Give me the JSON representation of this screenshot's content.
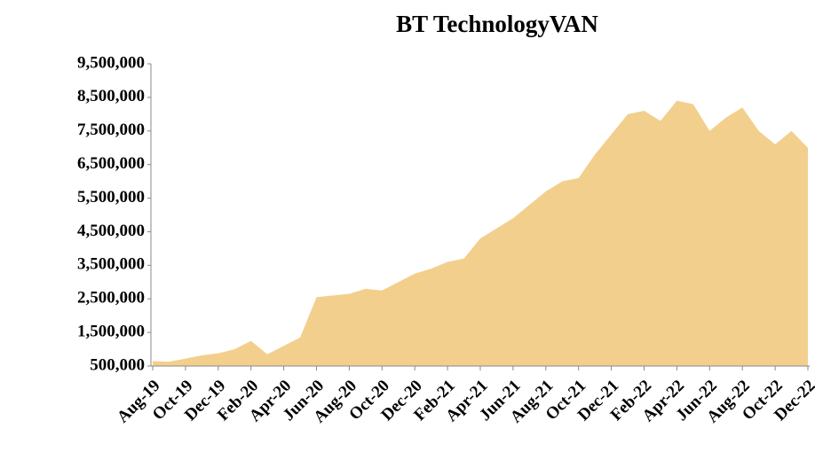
{
  "chart_data": {
    "type": "area",
    "title": "BT TechnologyVAN",
    "categories": [
      "Aug-19",
      null,
      "Oct-19",
      null,
      "Dec-19",
      null,
      "Feb-20",
      null,
      "Apr-20",
      null,
      "Jun-20",
      null,
      "Aug-20",
      null,
      "Oct-20",
      null,
      "Dec-20",
      null,
      "Feb-21",
      null,
      "Apr-21",
      null,
      "Jun-21",
      null,
      "Aug-21",
      null,
      "Oct-21",
      null,
      "Dec-21",
      null,
      "Feb-22",
      null,
      "Apr-22",
      null,
      "Jun-22",
      null,
      "Aug-22",
      null,
      "Oct-22",
      null,
      "Dec-22"
    ],
    "values": [
      650000,
      630000,
      720000,
      820000,
      880000,
      1000000,
      1250000,
      850000,
      1100000,
      1350000,
      2550000,
      2600000,
      2650000,
      2800000,
      2750000,
      3000000,
      3250000,
      3400000,
      3600000,
      3700000,
      4300000,
      4600000,
      4900000,
      5300000,
      5700000,
      6000000,
      6100000,
      6800000,
      7400000,
      8000000,
      8100000,
      7800000,
      8400000,
      8300000,
      7500000,
      7900000,
      8200000,
      7500000,
      7100000,
      7500000,
      7000000
    ],
    "color": "#f3cf8d",
    "ylim": [
      500000,
      9500000
    ],
    "yticks": [
      {
        "value": 500000,
        "label": "500,000"
      },
      {
        "value": 1500000,
        "label": "1,500,000"
      },
      {
        "value": 2500000,
        "label": "2,500,000"
      },
      {
        "value": 3500000,
        "label": "3,500,000"
      },
      {
        "value": 4500000,
        "label": "4,500,000"
      },
      {
        "value": 5500000,
        "label": "5,500,000"
      },
      {
        "value": 6500000,
        "label": "6,500,000"
      },
      {
        "value": 7500000,
        "label": "7,500,000"
      },
      {
        "value": 8500000,
        "label": "8,500,000"
      },
      {
        "value": 9500000,
        "label": "9,500,000"
      }
    ]
  }
}
